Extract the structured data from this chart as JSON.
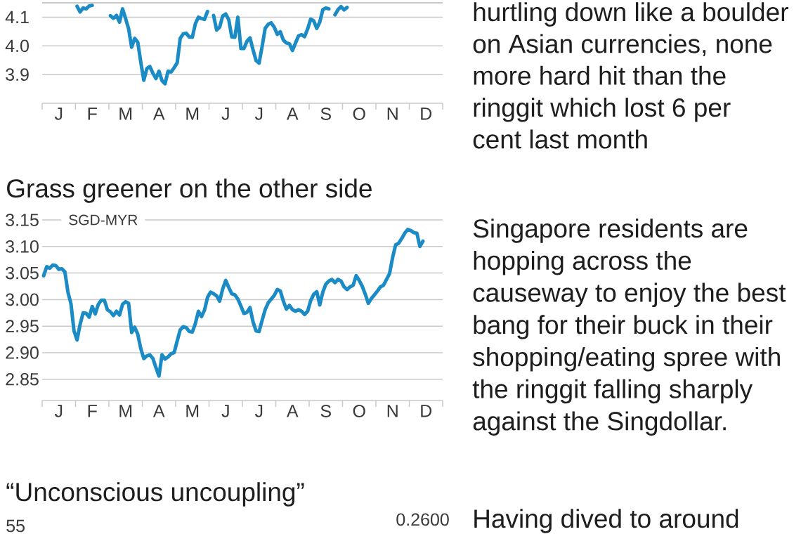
{
  "chart_data": [
    {
      "type": "line",
      "color": "#1a8bc4",
      "grid": "y",
      "ylim": [
        3.8,
        4.15
      ],
      "yticks": [
        {
          "value": 3.9,
          "label": "3.9"
        },
        {
          "value": 4.0,
          "label": "4.0"
        },
        {
          "value": 4.1,
          "label": "4.1"
        }
      ],
      "categories": [
        null,
        null,
        null,
        null,
        null,
        "J",
        null,
        null,
        null,
        null,
        null,
        null,
        null,
        null,
        null,
        null,
        "F",
        null,
        null,
        null,
        null,
        null,
        null,
        null,
        null,
        null,
        null,
        "M",
        null,
        null,
        null,
        null,
        null,
        null,
        null,
        null,
        null,
        null,
        "A",
        null,
        null,
        null,
        null,
        null,
        null,
        null,
        null,
        null,
        null,
        "M",
        null,
        null,
        null,
        null,
        null,
        null,
        null,
        null,
        null,
        null,
        "J",
        null,
        null,
        null,
        null,
        null,
        null,
        null,
        null,
        null,
        null,
        "J",
        null,
        null,
        null,
        null,
        null,
        null,
        null,
        null,
        null,
        null,
        "A",
        null,
        null,
        null,
        null,
        null,
        null,
        null,
        null,
        null,
        null,
        "S",
        null,
        null,
        null,
        null,
        null,
        null,
        null,
        null,
        null,
        null,
        "O",
        null,
        null,
        null,
        null,
        null,
        null,
        null,
        null,
        null,
        null,
        "N",
        null,
        null,
        null,
        null,
        null,
        null,
        null,
        null,
        null,
        null,
        "D",
        null,
        null,
        null,
        null,
        null
      ],
      "values": [
        null,
        null,
        null,
        null,
        null,
        null,
        null,
        null,
        null,
        null,
        null,
        4.138,
        4.118,
        4.132,
        4.129,
        4.139,
        4.141,
        null,
        null,
        null,
        null,
        null,
        4.105,
        4.096,
        4.106,
        4.083,
        4.129,
        4.095,
        4.059,
        3.995,
        4.026,
        4.013,
        3.944,
        3.88,
        3.921,
        3.928,
        3.905,
        3.886,
        3.912,
        3.879,
        3.868,
        3.912,
        3.909,
        3.924,
        3.941,
        4.026,
        4.042,
        4.044,
        4.031,
        4.03,
        4.077,
        4.1,
        4.095,
        4.092,
        4.12,
        null,
        4.106,
        4.055,
        4.065,
        4.104,
        4.111,
        4.091,
        4.031,
        4.03,
        4.1,
        3.991,
        3.991,
        4.016,
        4.028,
        3.986,
        3.949,
        3.94,
        3.998,
        4.061,
        4.075,
        4.08,
        4.065,
        4.04,
        4.049,
        4.02,
        4.01,
        4.007,
        3.984,
        4.01,
        4.035,
        4.039,
        4.032,
        4.059,
        4.093,
        4.087,
        4.061,
        4.083,
        4.126,
        4.132,
        4.129,
        null,
        4.108,
        4.126,
        4.137,
        4.125,
        4.134,
        null,
        null,
        null,
        null,
        null,
        null,
        null,
        null,
        null,
        null,
        null,
        null,
        null,
        null,
        null,
        null,
        null,
        null,
        null,
        null,
        null,
        null,
        null,
        null,
        null,
        null,
        null,
        null,
        null,
        null,
        null
      ]
    },
    {
      "type": "other",
      "annotations": [
        "hurtling down like a boulder",
        "on Asian currencies, none",
        "more hard hit than the",
        "ringgit which lost 6 per",
        "cent last month"
      ]
    },
    {
      "type": "line",
      "title": "Grass greener on the other side",
      "ylabel": "SGD-MYR",
      "color": "#1a8bc4",
      "grid": "y",
      "ylim": [
        2.81,
        3.15
      ],
      "yticks": [
        {
          "value": 2.85,
          "label": "2.85"
        },
        {
          "value": 2.9,
          "label": "2.90"
        },
        {
          "value": 2.95,
          "label": "2.95"
        },
        {
          "value": 3.0,
          "label": "3.00"
        },
        {
          "value": 3.05,
          "label": "3.05"
        },
        {
          "value": 3.1,
          "label": "3.10"
        },
        {
          "value": 3.15,
          "label": "3.15"
        }
      ],
      "categories": [
        null,
        null,
        null,
        null,
        null,
        "J",
        null,
        null,
        null,
        null,
        null,
        null,
        null,
        null,
        null,
        null,
        "F",
        null,
        null,
        null,
        null,
        null,
        null,
        null,
        null,
        null,
        null,
        "M",
        null,
        null,
        null,
        null,
        null,
        null,
        null,
        null,
        null,
        null,
        "A",
        null,
        null,
        null,
        null,
        null,
        null,
        null,
        null,
        null,
        null,
        "M",
        null,
        null,
        null,
        null,
        null,
        null,
        null,
        null,
        null,
        null,
        "J",
        null,
        null,
        null,
        null,
        null,
        null,
        null,
        null,
        null,
        null,
        "J",
        null,
        null,
        null,
        null,
        null,
        null,
        null,
        null,
        null,
        null,
        "A",
        null,
        null,
        null,
        null,
        null,
        null,
        null,
        null,
        null,
        null,
        "S",
        null,
        null,
        null,
        null,
        null,
        null,
        null,
        null,
        null,
        null,
        "O",
        null,
        null,
        null,
        null,
        null,
        null,
        null,
        null,
        null,
        null,
        "N",
        null,
        null,
        null,
        null,
        null,
        null,
        null,
        null,
        null,
        null,
        "D",
        null,
        null,
        null,
        null,
        null
      ],
      "values": [
        3.045,
        3.062,
        3.059,
        3.065,
        3.064,
        3.057,
        3.058,
        3.052,
        3.014,
        2.992,
        2.941,
        2.924,
        2.953,
        2.975,
        2.974,
        2.967,
        2.987,
        2.973,
        2.991,
        2.999,
        2.999,
        2.981,
        2.977,
        2.97,
        2.978,
        2.971,
        2.991,
        2.996,
        2.993,
        2.938,
        2.948,
        2.935,
        2.908,
        2.889,
        2.894,
        2.896,
        2.889,
        2.872,
        2.856,
        2.896,
        2.888,
        2.892,
        2.898,
        2.9,
        2.922,
        2.943,
        2.949,
        2.947,
        2.94,
        2.939,
        2.955,
        2.978,
        2.968,
        2.98,
        3.004,
        3.014,
        3.011,
        3.007,
        2.997,
        3.02,
        3.036,
        3.023,
        3.011,
        3.009,
        3.001,
        2.988,
        2.974,
        2.976,
        2.985,
        2.958,
        2.941,
        2.94,
        2.961,
        2.981,
        2.994,
        3.001,
        3.008,
        3.019,
        3.016,
        2.997,
        2.982,
        2.989,
        2.981,
        2.978,
        2.981,
        2.978,
        2.972,
        2.978,
        2.998,
        3.01,
        3.015,
        2.99,
        3.014,
        3.029,
        3.035,
        3.038,
        3.032,
        3.038,
        3.035,
        3.024,
        3.019,
        3.024,
        3.027,
        3.045,
        3.036,
        3.025,
        3.01,
        2.993,
        3.002,
        3.009,
        3.016,
        3.024,
        3.027,
        3.038,
        3.049,
        3.079,
        3.103,
        3.106,
        3.115,
        3.125,
        3.132,
        3.13,
        3.126,
        3.125,
        3.1,
        3.11,
        null,
        null,
        null,
        null,
        null,
        null
      ]
    },
    {
      "type": "other",
      "annotations": [
        "Singapore residents are",
        "hopping across the",
        "causeway to enjoy the best",
        "bang for their buck in their",
        "shopping/eating spree with",
        "the ringgit falling sharply",
        "against the Singdollar."
      ]
    },
    {
      "type": "other",
      "title": "“Unconscious uncoupling”",
      "annotations": [
        "55",
        "0.2600"
      ]
    },
    {
      "type": "other",
      "annotations": [
        "Having dived to around"
      ]
    }
  ]
}
